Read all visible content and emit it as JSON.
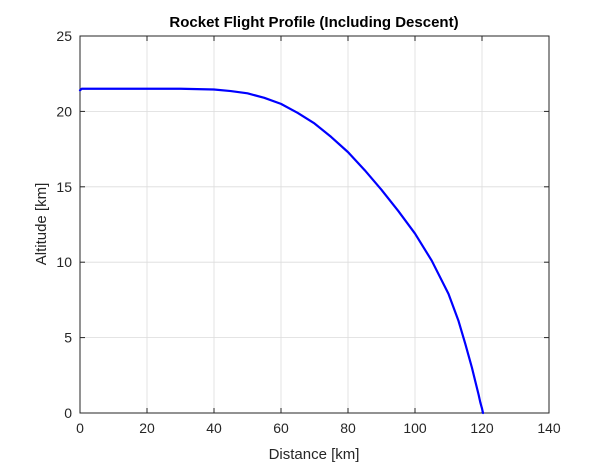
{
  "chart_data": {
    "type": "line",
    "title": "Rocket Flight Profile (Including Descent)",
    "xlabel": "Distance [km]",
    "ylabel": "Altitude [km]",
    "xlim": [
      0,
      140
    ],
    "ylim": [
      0,
      25
    ],
    "xticks": [
      0,
      20,
      40,
      60,
      80,
      100,
      120,
      140
    ],
    "yticks": [
      0,
      5,
      10,
      15,
      20,
      25
    ],
    "grid": true,
    "line_color": "#0000ff",
    "series": [
      {
        "x": [
          0,
          0.5,
          1,
          5,
          10,
          20,
          30,
          40,
          45,
          50,
          55,
          60,
          65,
          70,
          75,
          80,
          85,
          90,
          95,
          100,
          105,
          110,
          113,
          115,
          117,
          118,
          119,
          119.5,
          120,
          120.3
        ],
        "y": [
          21.4,
          21.5,
          21.5,
          21.5,
          21.5,
          21.5,
          21.5,
          21.45,
          21.35,
          21.2,
          20.9,
          20.5,
          19.9,
          19.2,
          18.3,
          17.3,
          16.1,
          14.8,
          13.4,
          11.9,
          10.1,
          7.9,
          6.1,
          4.6,
          3.0,
          2.1,
          1.2,
          0.7,
          0.3,
          0.0
        ]
      }
    ]
  }
}
